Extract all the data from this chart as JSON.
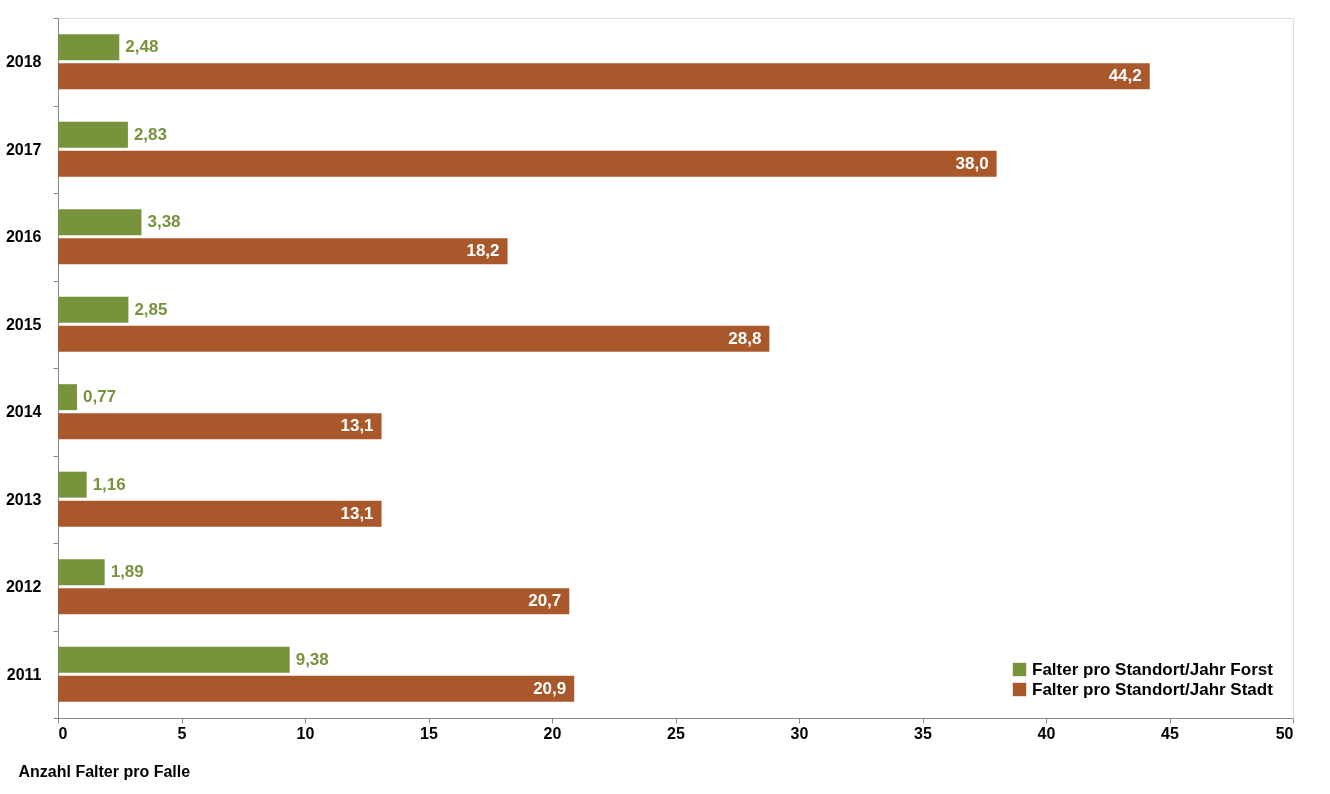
{
  "chart_data": {
    "type": "bar",
    "orientation": "horizontal",
    "xlabel": "Anzahl Falter pro Falle",
    "categories": [
      "2018",
      "2017",
      "2016",
      "2015",
      "2014",
      "2013",
      "2012",
      "2011"
    ],
    "series": [
      {
        "name": "Falter pro Standort/Jahr Forst",
        "color": "#77933c",
        "values": [
          2.48,
          2.83,
          3.38,
          2.85,
          0.77,
          1.16,
          1.89,
          9.38
        ],
        "value_labels": [
          "2,48",
          "2,83",
          "3,38",
          "2,85",
          "0,77",
          "1,16",
          "1,89",
          "9,38"
        ]
      },
      {
        "name": "Falter pro Standort/Jahr Stadt",
        "color": "#a8582a",
        "values": [
          44.2,
          38.0,
          18.2,
          28.8,
          13.1,
          13.1,
          20.7,
          20.9
        ],
        "value_labels": [
          "44,2",
          "38,0",
          "18,2",
          "28,8",
          "13,1",
          "13,1",
          "20,7",
          "20,9"
        ]
      }
    ],
    "xlim": [
      0,
      50
    ],
    "xticks": [
      0,
      5,
      10,
      15,
      20,
      25,
      30,
      35,
      40,
      45,
      50
    ],
    "grid": false,
    "legend": "bottom right"
  }
}
